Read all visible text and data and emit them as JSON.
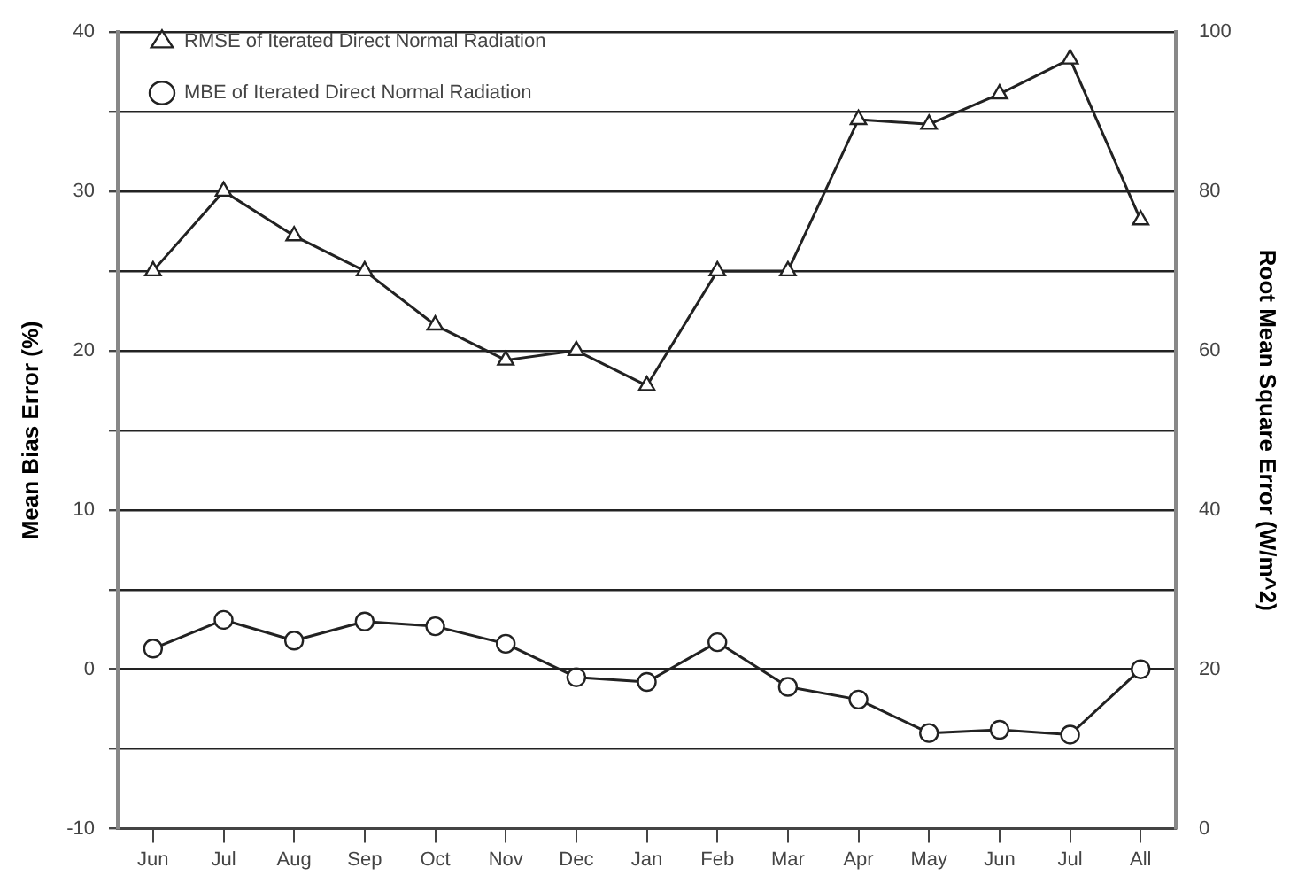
{
  "chart_data": {
    "type": "line",
    "xlabel": null,
    "ylabel": "Mean Bias Error (%)",
    "y2label": "Root Mean Square Error (W/m^2)",
    "categories": [
      "Jun",
      "Jul",
      "Aug",
      "Sep",
      "Oct",
      "Nov",
      "Dec",
      "Jan",
      "Feb",
      "Mar",
      "Apr",
      "May",
      "Jun",
      "Jul",
      "All"
    ],
    "series": [
      {
        "name": "RMSE of Iterated Direct Normal Radiation",
        "color": "#222222",
        "marker": "triangle",
        "axis": "y2",
        "values": [
          70,
          80,
          74.4,
          70,
          63.2,
          58.8,
          60,
          55.6,
          70,
          70,
          89,
          88.4,
          92.2,
          96.6,
          76.4
        ]
      },
      {
        "name": "MBE of Iterated Direct Normal Radiation",
        "color": "#222222",
        "marker": "circle",
        "axis": "y",
        "values": [
          1.3,
          3.1,
          1.8,
          3.0,
          2.7,
          1.6,
          -0.5,
          -0.8,
          1.7,
          -1.1,
          -1.9,
          -4.0,
          -3.8,
          -4.1,
          0
        ]
      }
    ],
    "ylim": [
      -10,
      40
    ],
    "yticks": [
      -10,
      {
        "value": -5,
        "label": null
      },
      0,
      {
        "value": 5,
        "label": null
      },
      10,
      {
        "value": 15,
        "label": null
      },
      20,
      {
        "value": 25,
        "label": null
      },
      30,
      {
        "value": 35,
        "label": null
      },
      40
    ],
    "y2lim": [
      0,
      100
    ],
    "y2ticks": [
      0,
      20,
      40,
      60,
      80,
      100
    ],
    "grid": "y",
    "legend": "top left",
    "line_style": "solid"
  }
}
